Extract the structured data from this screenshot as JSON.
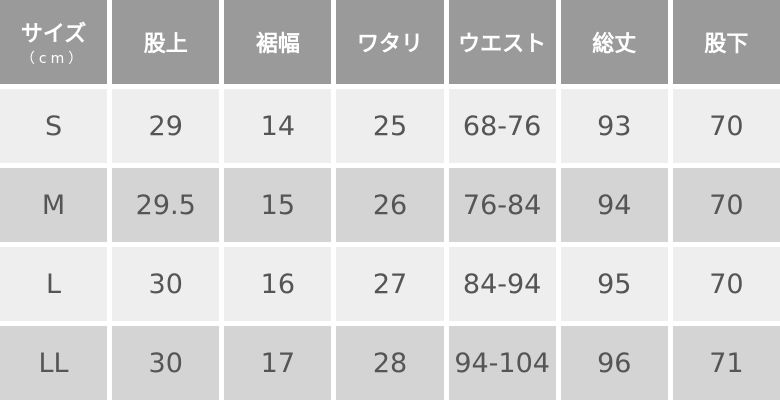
{
  "header": {
    "size_label": "サイズ",
    "unit_label": "（cm）",
    "columns": [
      "股上",
      "裾幅",
      "ワタリ",
      "ウエスト",
      "総丈",
      "股下"
    ]
  },
  "rows": [
    {
      "size": "S",
      "values": [
        "29",
        "14",
        "25",
        "68-76",
        "93",
        "70"
      ]
    },
    {
      "size": "M",
      "values": [
        "29.5",
        "15",
        "26",
        "76-84",
        "94",
        "70"
      ]
    },
    {
      "size": "L",
      "values": [
        "30",
        "16",
        "27",
        "84-94",
        "95",
        "70"
      ]
    },
    {
      "size": "LL",
      "values": [
        "30",
        "17",
        "28",
        "94-104",
        "96",
        "71"
      ]
    }
  ],
  "colors": {
    "header_bg": "#9a9a9a",
    "row_light": "#eeeeee",
    "row_dark": "#d4d4d4",
    "text": "#555555"
  }
}
